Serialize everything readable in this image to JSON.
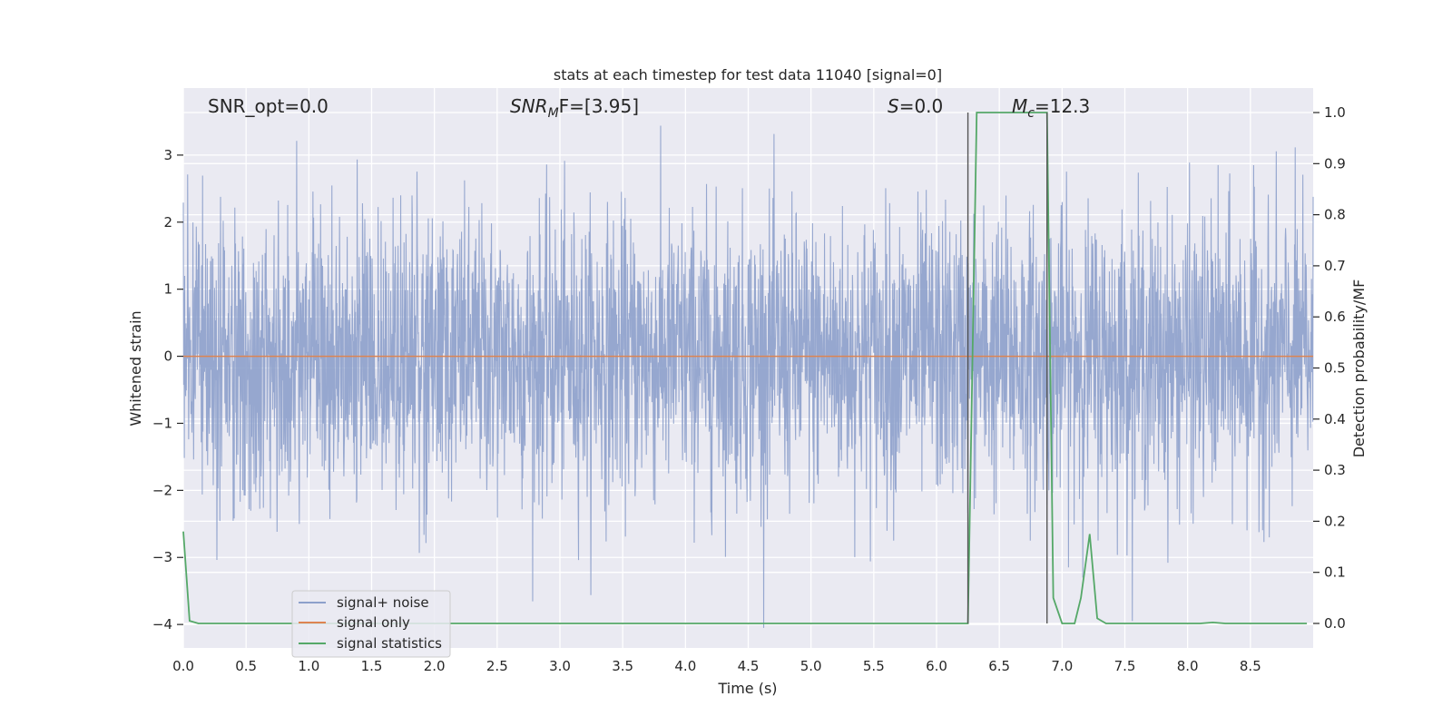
{
  "chart_data": {
    "type": "line",
    "title": "stats at each timestep for test data 11040 [signal=0]",
    "xlabel": "Time (s)",
    "ylabel_left": "Whitened strain",
    "ylabel_right": "Detection probability/MF",
    "xlim": [
      0,
      9.0
    ],
    "ylim_left": [
      -4.35,
      4.0
    ],
    "ylim_right": [
      -0.048,
      1.048
    ],
    "x_ticks": [
      "0.0",
      "0.5",
      "1.0",
      "1.5",
      "2.0",
      "2.5",
      "3.0",
      "3.5",
      "4.0",
      "4.5",
      "5.0",
      "5.5",
      "6.0",
      "6.5",
      "7.0",
      "7.5",
      "8.0",
      "8.5"
    ],
    "y_ticks_left": [
      "−4",
      "−3",
      "−2",
      "−1",
      "0",
      "1",
      "2",
      "3"
    ],
    "y_ticks_right": [
      "0.0",
      "0.1",
      "0.2",
      "0.3",
      "0.4",
      "0.5",
      "0.6",
      "0.7",
      "0.8",
      "0.9",
      "1.0"
    ],
    "annotations": {
      "snr_opt": "SNR_opt=0.0",
      "snr_mf_main": "SNR",
      "snr_mf_sub": "M",
      "snr_mf_tail": "F=[3.95]",
      "s_var": "S",
      "s_val": "=0.0",
      "mc_main": "M",
      "mc_sub": "c",
      "mc_tail": "=12.3"
    },
    "legend_position": "lower-left",
    "grid": true,
    "series": [
      {
        "name": "signal+ noise",
        "color": "#8da0cb",
        "description_values": "white noise, approximately ±1 std, peaks to ±3.5 over 0–9 s"
      },
      {
        "name": "signal only",
        "color": "#dd8452",
        "values": [
          [
            0,
            0
          ],
          [
            9.0,
            0
          ]
        ]
      },
      {
        "name": "signal statistics",
        "color": "#55a868",
        "axis": "right",
        "points": [
          [
            0.0,
            0.18
          ],
          [
            0.05,
            0.005
          ],
          [
            0.12,
            0.0
          ],
          [
            6.2,
            0.0
          ],
          [
            6.25,
            0.0
          ],
          [
            6.32,
            1.0
          ],
          [
            6.88,
            1.0
          ],
          [
            6.93,
            0.05
          ],
          [
            7.0,
            0.0
          ],
          [
            7.1,
            0.0
          ],
          [
            7.15,
            0.05
          ],
          [
            7.22,
            0.175
          ],
          [
            7.28,
            0.01
          ],
          [
            7.35,
            0.0
          ],
          [
            8.1,
            0.0
          ],
          [
            8.2,
            0.002
          ],
          [
            8.3,
            0.0
          ],
          [
            8.95,
            0.0
          ]
        ]
      },
      {
        "name": "",
        "color": "#555555",
        "axis": "right",
        "description": "detection markers",
        "points": [
          [
            6.25,
            1.0
          ],
          [
            6.88,
            0.0
          ]
        ]
      }
    ]
  }
}
